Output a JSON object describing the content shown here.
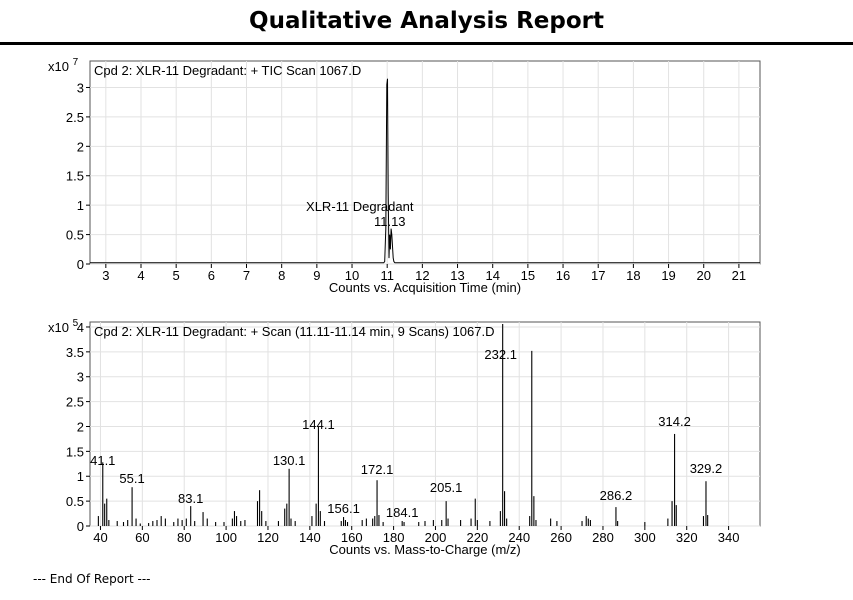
{
  "report": {
    "title": "Qualitative Analysis Report",
    "footer": "--- End Of Report ---"
  },
  "chart_data": [
    {
      "type": "line",
      "title": "Cpd 2: XLR-11 Degradant: + TIC Scan 1067.D",
      "xlabel": "Counts vs. Acquisition Time (min)",
      "ylabel": "",
      "y_multiplier": "x10",
      "y_exponent": "7",
      "xlim": [
        2.55,
        21.6
      ],
      "ylim": [
        0,
        3.45
      ],
      "x_ticks": [
        3,
        4,
        5,
        6,
        7,
        8,
        9,
        10,
        11,
        12,
        13,
        14,
        15,
        16,
        17,
        18,
        19,
        20,
        21
      ],
      "y_ticks": [
        0,
        0.5,
        1,
        1.5,
        2,
        2.5,
        3
      ],
      "grid": true,
      "series": [
        {
          "x": [
            2.55,
            10.9,
            10.93,
            10.96,
            10.99,
            11.01,
            11.03,
            11.05,
            11.07,
            11.09,
            11.11,
            11.13,
            11.15,
            11.17,
            11.19,
            11.22,
            21.6
          ],
          "y": [
            0.02,
            0.02,
            0.04,
            0.6,
            3.05,
            3.15,
            1.2,
            0.1,
            0.5,
            0.25,
            0.6,
            0.5,
            0.3,
            0.1,
            0.04,
            0.02,
            0.02
          ]
        }
      ],
      "annotations": [
        {
          "text": "XLR-11 Degradant",
          "x": 11.13
        },
        {
          "text": "11.13",
          "x": 11.13
        }
      ]
    },
    {
      "type": "bar",
      "title": "Cpd 2: XLR-11 Degradant: + Scan (11.11-11.14 min, 9 Scans) 1067.D",
      "xlabel": "Counts vs. Mass-to-Charge (m/z)",
      "ylabel": "",
      "y_multiplier": "x10",
      "y_exponent": "5",
      "xlim": [
        35,
        355
      ],
      "ylim": [
        0,
        4.1
      ],
      "x_ticks": [
        40,
        60,
        80,
        100,
        120,
        140,
        160,
        180,
        200,
        220,
        240,
        260,
        280,
        300,
        320,
        340
      ],
      "y_ticks": [
        0,
        0.5,
        1,
        1.5,
        2,
        2.5,
        3,
        3.5,
        4
      ],
      "grid": true,
      "peaks": [
        [
          39,
          0.2
        ],
        [
          41.1,
          1.28
        ],
        [
          42,
          0.45
        ],
        [
          43,
          0.55
        ],
        [
          44,
          0.12
        ],
        [
          48,
          0.1
        ],
        [
          51,
          0.08
        ],
        [
          53,
          0.12
        ],
        [
          55.1,
          0.78
        ],
        [
          57,
          0.15
        ],
        [
          59,
          0.05
        ],
        [
          63,
          0.06
        ],
        [
          65,
          0.1
        ],
        [
          67,
          0.12
        ],
        [
          69,
          0.2
        ],
        [
          71,
          0.15
        ],
        [
          75,
          0.08
        ],
        [
          77,
          0.15
        ],
        [
          79,
          0.12
        ],
        [
          81,
          0.15
        ],
        [
          83.1,
          0.4
        ],
        [
          85,
          0.1
        ],
        [
          89,
          0.28
        ],
        [
          91,
          0.15
        ],
        [
          95,
          0.08
        ],
        [
          99,
          0.08
        ],
        [
          103,
          0.15
        ],
        [
          104,
          0.3
        ],
        [
          105,
          0.2
        ],
        [
          107,
          0.1
        ],
        [
          109,
          0.12
        ],
        [
          115,
          0.5
        ],
        [
          116,
          0.72
        ],
        [
          117,
          0.3
        ],
        [
          119,
          0.1
        ],
        [
          125,
          0.1
        ],
        [
          128,
          0.35
        ],
        [
          129,
          0.45
        ],
        [
          130.1,
          1.15
        ],
        [
          131,
          0.15
        ],
        [
          133,
          0.1
        ],
        [
          141,
          0.2
        ],
        [
          143,
          0.45
        ],
        [
          144.1,
          2.0
        ],
        [
          145,
          0.3
        ],
        [
          147,
          0.1
        ],
        [
          155,
          0.1
        ],
        [
          156.1,
          0.18
        ],
        [
          157,
          0.12
        ],
        [
          158,
          0.08
        ],
        [
          165,
          0.12
        ],
        [
          167,
          0.15
        ],
        [
          170,
          0.15
        ],
        [
          171,
          0.2
        ],
        [
          172.1,
          0.92
        ],
        [
          173,
          0.22
        ],
        [
          175,
          0.08
        ],
        [
          184.1,
          0.1
        ],
        [
          185,
          0.08
        ],
        [
          192,
          0.08
        ],
        [
          195,
          0.1
        ],
        [
          199,
          0.12
        ],
        [
          203,
          0.12
        ],
        [
          205.1,
          0.5
        ],
        [
          206,
          0.15
        ],
        [
          212,
          0.12
        ],
        [
          217,
          0.15
        ],
        [
          219,
          0.55
        ],
        [
          220,
          0.12
        ],
        [
          226,
          0.1
        ],
        [
          231,
          0.3
        ],
        [
          232.1,
          4.6
        ],
        [
          233,
          0.7
        ],
        [
          234,
          0.15
        ],
        [
          245,
          0.2
        ],
        [
          246,
          3.52
        ],
        [
          247,
          0.6
        ],
        [
          248,
          0.12
        ],
        [
          255,
          0.15
        ],
        [
          258,
          0.1
        ],
        [
          270,
          0.1
        ],
        [
          272,
          0.2
        ],
        [
          273,
          0.15
        ],
        [
          274,
          0.12
        ],
        [
          286.2,
          0.38
        ],
        [
          287,
          0.1
        ],
        [
          300,
          0.08
        ],
        [
          311,
          0.15
        ],
        [
          313,
          0.5
        ],
        [
          314.2,
          1.85
        ],
        [
          315,
          0.42
        ],
        [
          328,
          0.2
        ],
        [
          329.2,
          0.9
        ],
        [
          330,
          0.22
        ]
      ],
      "annotations": [
        {
          "text": "41.1",
          "x": 41.1
        },
        {
          "text": "55.1",
          "x": 55.1
        },
        {
          "text": "83.1",
          "x": 83.1
        },
        {
          "text": "130.1",
          "x": 130.1
        },
        {
          "text": "144.1",
          "x": 144.1
        },
        {
          "text": "156.1",
          "x": 156.1
        },
        {
          "text": "172.1",
          "x": 172.1
        },
        {
          "text": "184.1",
          "x": 184.1
        },
        {
          "text": "205.1",
          "x": 205.1
        },
        {
          "text": "232.1",
          "x": 232.1
        },
        {
          "text": "286.2",
          "x": 286.2
        },
        {
          "text": "314.2",
          "x": 314.2
        },
        {
          "text": "329.2",
          "x": 329.2
        }
      ]
    }
  ]
}
